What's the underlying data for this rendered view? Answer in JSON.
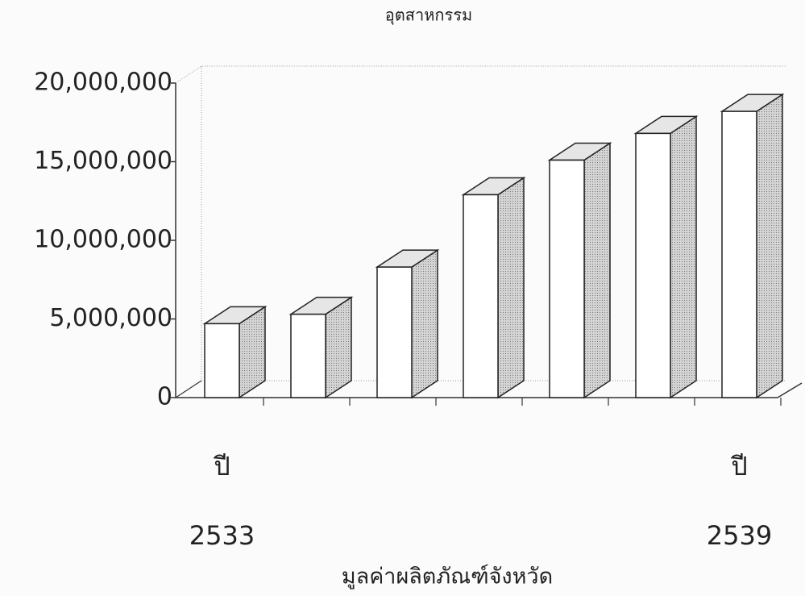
{
  "chart_data": {
    "type": "bar3d",
    "title": "อุตสาหกรรม",
    "x_label": "มูลค่าผลิตภัณฑ์จังหวัด",
    "categories": [
      "ปี\n2533",
      null,
      null,
      null,
      null,
      null,
      "ปี\n2539"
    ],
    "values": [
      4700000,
      5300000,
      8300000,
      12900000,
      15100000,
      16800000,
      18200000
    ],
    "color": "#ffffff",
    "ylim": [
      0,
      20000000
    ],
    "yticks": [
      0,
      {
        "value": 5000000,
        "label": "5,000,000"
      },
      {
        "value": 10000000,
        "label": "10,000,000"
      },
      {
        "value": 15000000,
        "label": "15,000,000"
      },
      {
        "value": 20000000,
        "label": "20,000,000"
      }
    ]
  }
}
